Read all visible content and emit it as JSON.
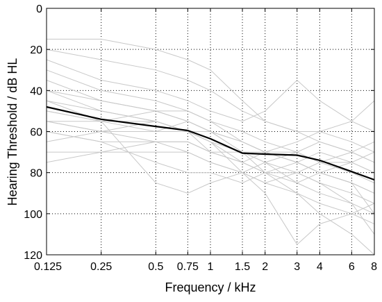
{
  "chart_data": {
    "type": "line",
    "title": "",
    "xlabel": "Frequency / kHz",
    "ylabel": "Hearing Threshold / dB HL",
    "x_scale": "log",
    "y_inverted": true,
    "xlim": [
      0.125,
      8
    ],
    "ylim": [
      0,
      120
    ],
    "x_ticks": [
      "0.125",
      "0.25",
      "0.5",
      "0.75",
      "1",
      "1.5",
      "2",
      "3",
      "4",
      "6",
      "8"
    ],
    "y_ticks": [
      "0",
      "20",
      "40",
      "60",
      "80",
      "100",
      "120"
    ],
    "grid": true,
    "colors": {
      "mean": "#000000",
      "individual": "#c8c8c8",
      "grid": "#000000"
    },
    "x": [
      0.125,
      0.25,
      0.5,
      0.75,
      1,
      1.5,
      2,
      3,
      4,
      6,
      8
    ],
    "series": [
      {
        "role": "mean",
        "values": [
          48,
          54,
          57.5,
          59.5,
          63.5,
          70.5,
          71,
          71.5,
          74,
          79.5,
          83.5
        ]
      },
      {
        "role": "individual",
        "values": [
          15,
          15,
          20,
          25,
          30,
          45,
          55,
          60,
          65,
          70,
          75
        ]
      },
      {
        "role": "individual",
        "values": [
          20,
          25,
          30,
          35,
          40,
          50,
          55,
          60,
          60,
          55,
          45
        ]
      },
      {
        "role": "individual",
        "values": [
          25,
          35,
          40,
          45,
          50,
          55,
          50,
          35,
          45,
          55,
          60
        ]
      },
      {
        "role": "individual",
        "values": [
          30,
          40,
          45,
          50,
          55,
          65,
          70,
          75,
          80,
          85,
          90
        ]
      },
      {
        "role": "individual",
        "values": [
          35,
          45,
          50,
          50,
          55,
          60,
          65,
          70,
          75,
          80,
          85
        ]
      },
      {
        "role": "individual",
        "values": [
          40,
          45,
          50,
          55,
          60,
          70,
          75,
          80,
          85,
          90,
          95
        ]
      },
      {
        "role": "individual",
        "values": [
          45,
          50,
          55,
          60,
          65,
          75,
          80,
          80,
          75,
          70,
          65
        ]
      },
      {
        "role": "individual",
        "values": [
          50,
          55,
          55,
          60,
          65,
          70,
          70,
          75,
          80,
          85,
          100
        ]
      },
      {
        "role": "individual",
        "values": [
          55,
          60,
          60,
          60,
          60,
          65,
          70,
          75,
          70,
          75,
          80
        ]
      },
      {
        "role": "individual",
        "values": [
          55,
          55,
          50,
          55,
          60,
          70,
          80,
          90,
          100,
          110,
          120
        ]
      },
      {
        "role": "individual",
        "values": [
          60,
          65,
          65,
          65,
          70,
          75,
          70,
          65,
          60,
          65,
          70
        ]
      },
      {
        "role": "individual",
        "values": [
          65,
          60,
          55,
          60,
          65,
          80,
          85,
          80,
          85,
          95,
          100
        ]
      },
      {
        "role": "individual",
        "values": [
          70,
          70,
          65,
          70,
          75,
          80,
          75,
          70,
          65,
          70,
          75
        ]
      },
      {
        "role": "individual",
        "values": [
          75,
          70,
          70,
          70,
          75,
          80,
          85,
          90,
          95,
          100,
          105
        ]
      },
      {
        "role": "individual",
        "values": [
          60,
          65,
          75,
          80,
          80,
          85,
          80,
          75,
          80,
          85,
          90
        ]
      },
      {
        "role": "individual",
        "values": [
          50,
          55,
          85,
          90,
          85,
          80,
          90,
          115,
          105,
          100,
          95
        ]
      },
      {
        "role": "individual",
        "values": [
          45,
          55,
          60,
          55,
          60,
          65,
          70,
          70,
          75,
          75,
          80
        ]
      },
      {
        "role": "individual",
        "values": [
          40,
          50,
          55,
          60,
          70,
          75,
          80,
          85,
          80,
          75,
          70
        ]
      },
      {
        "role": "individual",
        "values": [
          55,
          60,
          65,
          65,
          70,
          70,
          75,
          85,
          90,
          95,
          110
        ]
      }
    ]
  }
}
